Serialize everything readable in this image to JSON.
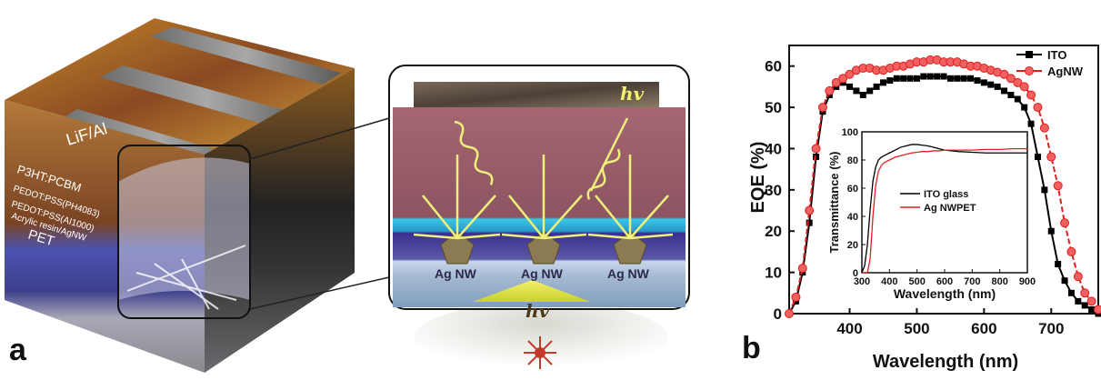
{
  "panel_a": {
    "label": "a",
    "layers": [
      "LiF/Al",
      "P3HT:PCBM",
      "PEDOT:PSS(PH4083)",
      "PEDOT:PSS(AI1000)",
      "Acrylic resin/AgNW",
      "PET"
    ],
    "nanowire_labels": [
      "Ag NW",
      "Ag NW",
      "Ag NW"
    ],
    "photon_labels": [
      "hv",
      "hv"
    ]
  },
  "panel_b": {
    "label": "b"
  },
  "colors": {
    "ito": "#000000",
    "agnw": "#e02020"
  },
  "chart_data": [
    {
      "type": "line",
      "xlabel": "Wavelength (nm)",
      "ylabel": "EQE (%)",
      "xlim": [
        310,
        770
      ],
      "ylim": [
        0,
        65
      ],
      "xticks": [
        400,
        500,
        600,
        700
      ],
      "yticks": [
        0,
        10,
        20,
        30,
        40,
        50,
        60
      ],
      "legend": "top-right",
      "series": [
        {
          "name": "ITO",
          "marker": "square",
          "x": [
            310,
            320,
            330,
            340,
            350,
            360,
            370,
            380,
            390,
            400,
            410,
            420,
            430,
            440,
            450,
            460,
            470,
            480,
            490,
            500,
            510,
            520,
            530,
            540,
            550,
            560,
            570,
            580,
            590,
            600,
            610,
            620,
            630,
            640,
            650,
            660,
            670,
            680,
            690,
            700,
            710,
            720,
            730,
            740,
            750,
            760,
            770
          ],
          "y": [
            0,
            3,
            10,
            22,
            38,
            49,
            53,
            55,
            56,
            55,
            54,
            53,
            54,
            55,
            56,
            56.5,
            57,
            57,
            57,
            57,
            57.5,
            57.5,
            57.5,
            57.5,
            57,
            57,
            57,
            57,
            56.5,
            56,
            55.5,
            55,
            54,
            53,
            52,
            50,
            46,
            38,
            30,
            20,
            12,
            8,
            5,
            3,
            2,
            1,
            0
          ]
        },
        {
          "name": "AgNW",
          "marker": "circle",
          "x": [
            310,
            320,
            330,
            340,
            350,
            360,
            370,
            380,
            390,
            400,
            410,
            420,
            430,
            440,
            450,
            460,
            470,
            480,
            490,
            500,
            510,
            520,
            530,
            540,
            550,
            560,
            570,
            580,
            590,
            600,
            610,
            620,
            630,
            640,
            650,
            660,
            670,
            680,
            690,
            700,
            710,
            720,
            730,
            740,
            750,
            760,
            770
          ],
          "y": [
            0,
            4,
            11,
            25,
            40,
            50,
            54,
            56,
            57,
            58,
            59,
            59.5,
            59.5,
            59,
            59,
            59.5,
            60,
            60,
            60.5,
            61,
            61,
            61.5,
            61.5,
            61,
            61,
            61,
            60.5,
            60,
            60,
            59.5,
            59,
            58.5,
            58,
            57,
            56,
            55,
            53,
            50,
            45,
            38,
            31,
            22,
            15,
            9,
            5,
            3,
            1
          ]
        }
      ]
    },
    {
      "type": "line",
      "xlabel": "Wavelength (nm)",
      "ylabel": "Transmittance (%)",
      "xlim": [
        300,
        900
      ],
      "ylim": [
        0,
        100
      ],
      "xticks": [
        300,
        400,
        500,
        600,
        700,
        800,
        900
      ],
      "yticks": [
        0,
        20,
        40,
        60,
        80,
        100
      ],
      "legend": "center",
      "series": [
        {
          "name": "ITO glass",
          "x": [
            300,
            310,
            320,
            330,
            340,
            350,
            360,
            370,
            380,
            400,
            420,
            440,
            460,
            480,
            500,
            520,
            540,
            560,
            580,
            600,
            650,
            700,
            750,
            800,
            850,
            900
          ],
          "y": [
            0,
            5,
            20,
            45,
            65,
            75,
            80,
            82,
            83,
            85,
            87,
            89,
            90,
            91,
            91,
            90.5,
            90,
            89,
            88,
            87,
            86,
            85.5,
            85,
            85,
            85,
            85
          ]
        },
        {
          "name": "Ag NWPET",
          "x": [
            300,
            320,
            330,
            340,
            350,
            360,
            370,
            380,
            400,
            420,
            440,
            460,
            480,
            500,
            520,
            540,
            560,
            580,
            600,
            650,
            700,
            750,
            800,
            850,
            900
          ],
          "y": [
            0,
            0,
            10,
            40,
            62,
            72,
            76,
            78,
            80,
            82,
            83,
            84,
            85,
            85.5,
            86,
            86,
            86.5,
            86.5,
            87,
            87,
            87,
            87.5,
            87.5,
            88,
            88
          ]
        }
      ]
    }
  ]
}
